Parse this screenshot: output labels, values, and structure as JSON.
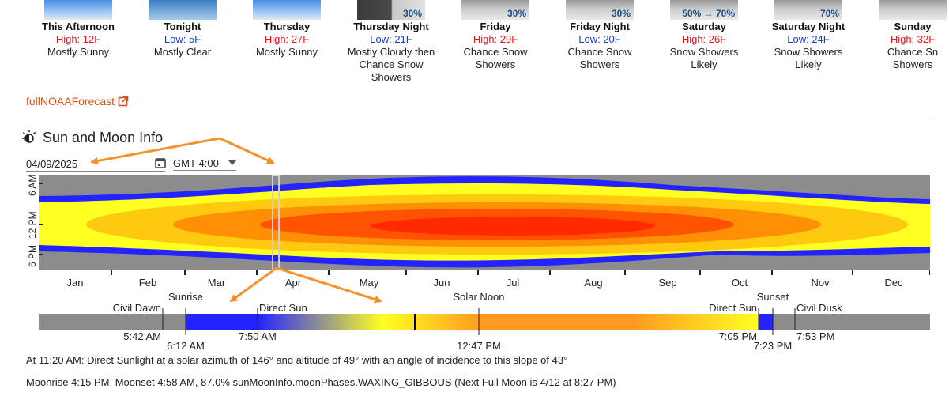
{
  "forecast": [
    {
      "name": "This Afternoon",
      "temp": "High: 12F",
      "temp_type": "high",
      "desc": [
        "Mostly Sunny"
      ],
      "pct": "",
      "icon": "mostly-sunny-icon"
    },
    {
      "name": "Tonight",
      "temp": "Low: 5F",
      "temp_type": "low",
      "desc": [
        "Mostly Clear"
      ],
      "pct": "",
      "icon": "mostly-clear-icon"
    },
    {
      "name": "Thursday",
      "temp": "High: 27F",
      "temp_type": "high",
      "desc": [
        "Mostly Sunny"
      ],
      "pct": "",
      "icon": "mostly-sunny-icon"
    },
    {
      "name": "Thursday Night",
      "temp": "Low: 21F",
      "temp_type": "low",
      "desc": [
        "Mostly Cloudy then",
        "Chance Snow",
        "Showers"
      ],
      "pct": "30%",
      "icon": "cloudy-snow-icon"
    },
    {
      "name": "Friday",
      "temp": "High: 29F",
      "temp_type": "high",
      "desc": [
        "Chance Snow",
        "Showers"
      ],
      "pct": "30%",
      "icon": "snow-icon"
    },
    {
      "name": "Friday Night",
      "temp": "Low: 20F",
      "temp_type": "low",
      "desc": [
        "Chance Snow",
        "Showers"
      ],
      "pct": "30%",
      "icon": "snow-icon"
    },
    {
      "name": "Saturday",
      "temp": "High: 26F",
      "temp_type": "high",
      "desc": [
        "Snow Showers",
        "Likely"
      ],
      "pct": "50% → 70%",
      "icon": "snow-icon"
    },
    {
      "name": "Saturday Night",
      "temp": "Low: 24F",
      "temp_type": "low",
      "desc": [
        "Snow Showers",
        "Likely"
      ],
      "pct": "70%",
      "icon": "snow-icon"
    },
    {
      "name": "Sunday",
      "temp": "High: 32F",
      "temp_type": "high",
      "desc": [
        "Chance Sn",
        "Showers"
      ],
      "pct": "",
      "icon": "snow-icon"
    }
  ],
  "noaa_link": "fullNOAAForecast",
  "sun": {
    "title": "Sun and Moon Info",
    "date": "04/09/2025",
    "timezone": "GMT-4:00",
    "y_labels": [
      "6 AM",
      "12 PM",
      "6 PM"
    ],
    "months": [
      "Jan",
      "Feb",
      "Mar",
      "Apr",
      "May",
      "Jun",
      "Jul",
      "Aug",
      "Sep",
      "Oct",
      "Nov",
      "Dec"
    ],
    "timeline_top": {
      "civil_dawn": "Civil Dawn",
      "sunrise": "Sunrise",
      "direct_sun_start": "Direct Sun",
      "solar_noon": "Solar Noon",
      "direct_sun_end": "Direct Sun",
      "sunset": "Sunset",
      "civil_dusk": "Civil Dusk"
    },
    "timeline_bottom": {
      "civil_dawn": "5:42 AM",
      "sunrise": "6:12 AM",
      "direct_sun_start": "7:50 AM",
      "solar_noon": "12:47 PM",
      "direct_sun_end": "7:05 PM",
      "sunset": "7:23 PM",
      "civil_dusk": "7:53 PM"
    },
    "status": "At 11:20 AM: Direct Sunlight at a solar azimuth of 146° and altitude of 49° with an angle of incidence to this slope of 43°",
    "moon": "Moonrise 4:15 PM, Moonset 4:58 AM, 87.0% sunMoonInfo.moonPhases.WAXING_GIBBOUS (Next Full Moon is 4/12 at 8:27 PM)"
  },
  "colors": {
    "high": "#e8141b",
    "low": "#1040c8",
    "link": "#d2541c",
    "night": "#8c8c8c",
    "twilight": "#2323ff",
    "annotation": "#f5922a"
  }
}
